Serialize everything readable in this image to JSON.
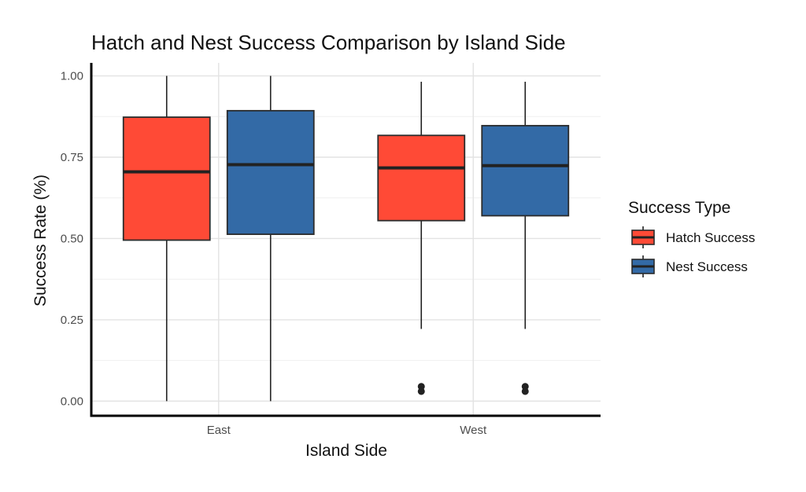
{
  "chart_data": {
    "type": "box",
    "title": "Hatch and Nest Success Comparison by Island Side",
    "xlabel": "Island Side",
    "ylabel": "Success Rate (%)",
    "categories": [
      "East",
      "West"
    ],
    "ylim": [
      -0.045,
      1.04
    ],
    "yticks": [
      0.0,
      0.25,
      0.5,
      0.75,
      1.0
    ],
    "ytick_labels": [
      "0.00",
      "0.25",
      "0.50",
      "0.75",
      "1.00"
    ],
    "grid": true,
    "legend": {
      "title": "Success Type",
      "position": "right"
    },
    "series": [
      {
        "name": "Hatch Success",
        "color": "#ff4a36",
        "boxes": [
          {
            "category": "East",
            "min": 0.0,
            "q1": 0.495,
            "median": 0.705,
            "q3": 0.873,
            "max": 1.0,
            "outliers": []
          },
          {
            "category": "West",
            "min": 0.222,
            "q1": 0.555,
            "median": 0.717,
            "q3": 0.817,
            "max": 0.982,
            "outliers": [
              0.03,
              0.045
            ]
          }
        ]
      },
      {
        "name": "Nest Success",
        "color": "#336aa6",
        "boxes": [
          {
            "category": "East",
            "min": 0.0,
            "q1": 0.513,
            "median": 0.727,
            "q3": 0.893,
            "max": 1.0,
            "outliers": []
          },
          {
            "category": "West",
            "min": 0.222,
            "q1": 0.57,
            "median": 0.724,
            "q3": 0.847,
            "max": 0.982,
            "outliers": [
              0.03,
              0.045
            ]
          }
        ]
      }
    ]
  }
}
